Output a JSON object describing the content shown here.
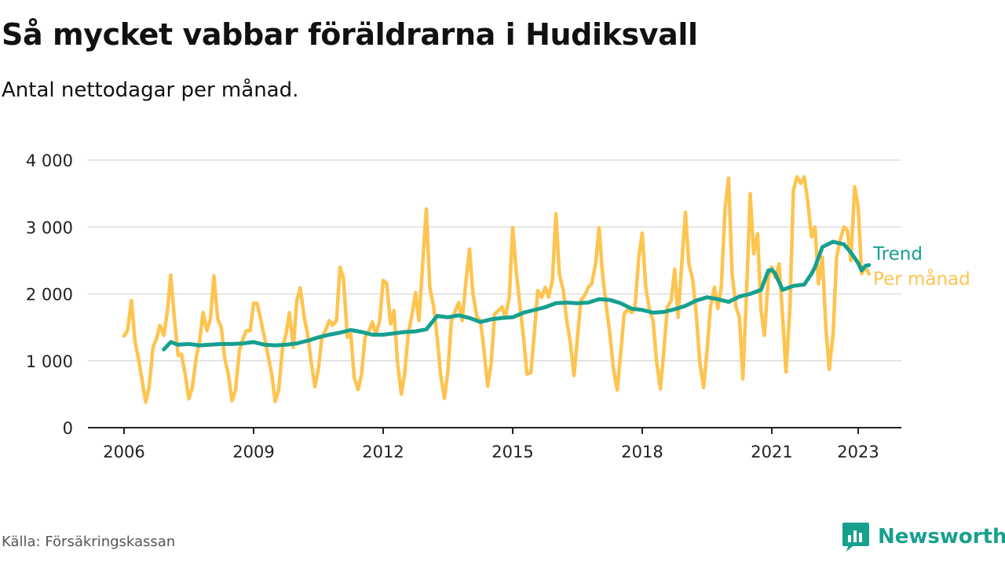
{
  "title": "Så mycket vabbar föräldrarna i Hudiksvall",
  "subtitle": "Antal nettodagar per månad.",
  "source": "Källa: Försäkringskassan",
  "brand": {
    "name": "Newsworthy",
    "color": "#18a08e"
  },
  "colors": {
    "monthly": "#fec44f",
    "trend": "#17a08f",
    "grid": "#dddddd",
    "axis": "#222222"
  },
  "chart_data": {
    "type": "line",
    "title": "Så mycket vabbar föräldrarna i Hudiksvall",
    "subtitle": "Antal nettodagar per månad.",
    "xlim": [
      2006,
      2024.5
    ],
    "ylim": [
      0,
      4000
    ],
    "x_ticks": [
      2006,
      2009,
      2012,
      2015,
      2018,
      2021,
      2023
    ],
    "x_tick_labels": [
      "2006",
      "2009",
      "2012",
      "2015",
      "2018",
      "2021",
      "2023"
    ],
    "y_ticks": [
      0,
      1000,
      2000,
      3000,
      4000
    ],
    "y_tick_labels": [
      "0",
      "1 000",
      "2 000",
      "3 000",
      "4 000"
    ],
    "grid": true,
    "legend": "direct labels at end of lines (right)",
    "series": [
      {
        "name": "Per månad",
        "color": "#fec44f",
        "x": [
          2006.0,
          2006.08,
          2006.17,
          2006.25,
          2006.33,
          2006.42,
          2006.5,
          2006.58,
          2006.67,
          2006.75,
          2006.83,
          2006.92,
          2007.0,
          2007.08,
          2007.17,
          2007.25,
          2007.33,
          2007.42,
          2007.5,
          2007.58,
          2007.67,
          2007.75,
          2007.83,
          2007.92,
          2008.0,
          2008.08,
          2008.17,
          2008.25,
          2008.33,
          2008.42,
          2008.5,
          2008.58,
          2008.67,
          2008.75,
          2008.83,
          2008.92,
          2009.0,
          2009.08,
          2009.17,
          2009.25,
          2009.33,
          2009.42,
          2009.5,
          2009.58,
          2009.67,
          2009.75,
          2009.83,
          2009.92,
          2010.0,
          2010.08,
          2010.17,
          2010.25,
          2010.33,
          2010.42,
          2010.5,
          2010.58,
          2010.67,
          2010.75,
          2010.83,
          2010.92,
          2011.0,
          2011.08,
          2011.17,
          2011.25,
          2011.33,
          2011.42,
          2011.5,
          2011.58,
          2011.67,
          2011.75,
          2011.83,
          2011.92,
          2012.0,
          2012.08,
          2012.17,
          2012.25,
          2012.33,
          2012.42,
          2012.5,
          2012.58,
          2012.67,
          2012.75,
          2012.83,
          2012.92,
          2013.0,
          2013.08,
          2013.17,
          2013.25,
          2013.33,
          2013.42,
          2013.5,
          2013.58,
          2013.67,
          2013.75,
          2013.83,
          2013.92,
          2014.0,
          2014.08,
          2014.17,
          2014.25,
          2014.33,
          2014.42,
          2014.5,
          2014.58,
          2014.67,
          2014.75,
          2014.83,
          2014.92,
          2015.0,
          2015.08,
          2015.17,
          2015.25,
          2015.33,
          2015.42,
          2015.5,
          2015.58,
          2015.67,
          2015.75,
          2015.83,
          2015.92,
          2016.0,
          2016.08,
          2016.17,
          2016.25,
          2016.33,
          2016.42,
          2016.5,
          2016.58,
          2016.67,
          2016.75,
          2016.83,
          2016.92,
          2017.0,
          2017.08,
          2017.17,
          2017.25,
          2017.33,
          2017.42,
          2017.5,
          2017.58,
          2017.67,
          2017.75,
          2017.83,
          2017.92,
          2018.0,
          2018.08,
          2018.17,
          2018.25,
          2018.33,
          2018.42,
          2018.5,
          2018.58,
          2018.67,
          2018.75,
          2018.83,
          2018.92,
          2019.0,
          2019.08,
          2019.17,
          2019.25,
          2019.33,
          2019.42,
          2019.5,
          2019.58,
          2019.67,
          2019.75,
          2019.83,
          2019.92,
          2020.0,
          2020.08,
          2020.17,
          2020.25,
          2020.33,
          2020.42,
          2020.5,
          2020.58,
          2020.67,
          2020.75,
          2020.83,
          2020.92,
          2021.0,
          2021.08,
          2021.17,
          2021.25,
          2021.33,
          2021.42,
          2021.5,
          2021.58,
          2021.67,
          2021.75,
          2021.83,
          2021.92,
          2022.0,
          2022.08,
          2022.17,
          2022.25,
          2022.33,
          2022.42,
          2022.5,
          2022.58,
          2022.67,
          2022.75,
          2022.83,
          2022.92,
          2023.0,
          2023.08,
          2023.17,
          2023.25
        ],
        "values": [
          1370,
          1450,
          1900,
          1300,
          1050,
          700,
          380,
          600,
          1200,
          1330,
          1530,
          1380,
          1720,
          2280,
          1600,
          1080,
          1100,
          780,
          430,
          600,
          1050,
          1300,
          1720,
          1450,
          1620,
          2270,
          1620,
          1500,
          1050,
          780,
          400,
          560,
          1150,
          1320,
          1450,
          1450,
          1860,
          1860,
          1600,
          1350,
          1100,
          800,
          390,
          560,
          1200,
          1400,
          1720,
          1200,
          1900,
          2090,
          1650,
          1400,
          1000,
          610,
          880,
          1350,
          1460,
          1600,
          1530,
          1600,
          2400,
          2240,
          1350,
          1400,
          750,
          570,
          800,
          1350,
          1450,
          1580,
          1400,
          1600,
          2200,
          2160,
          1550,
          1750,
          1000,
          500,
          820,
          1400,
          1700,
          2020,
          1600,
          2500,
          3270,
          2100,
          1800,
          1350,
          800,
          440,
          850,
          1600,
          1750,
          1870,
          1600,
          2200,
          2670,
          2000,
          1650,
          1600,
          1200,
          620,
          950,
          1700,
          1750,
          1810,
          1650,
          1950,
          2990,
          2350,
          1800,
          1350,
          800,
          820,
          1400,
          2050,
          1950,
          2100,
          1950,
          2200,
          3200,
          2300,
          2050,
          1600,
          1300,
          780,
          1350,
          1900,
          1980,
          2100,
          2150,
          2450,
          2990,
          2300,
          1800,
          1400,
          900,
          560,
          1100,
          1700,
          1770,
          1720,
          1780,
          2550,
          2910,
          2100,
          1750,
          1600,
          1000,
          580,
          1150,
          1800,
          1900,
          2370,
          1650,
          2500,
          3220,
          2450,
          2200,
          1700,
          1000,
          600,
          1150,
          1800,
          2100,
          1780,
          2100,
          3300,
          3730,
          2300,
          1800,
          1650,
          730,
          2100,
          3500,
          2600,
          2900,
          1750,
          1380,
          2250,
          2400,
          2250,
          2450,
          1650,
          830,
          1800,
          3550,
          3750,
          3650,
          3750,
          3400,
          2850,
          3000,
          2150,
          2550,
          1500,
          870,
          1400,
          2550,
          2800,
          3000,
          2950,
          2500,
          3600,
          3300,
          2300,
          2400,
          2300
        ]
      },
      {
        "name": "Trend",
        "color": "#17a08f",
        "x": [
          2006.92,
          2007.08,
          2007.25,
          2007.5,
          2007.75,
          2008.0,
          2008.25,
          2008.5,
          2008.75,
          2009.0,
          2009.25,
          2009.5,
          2009.75,
          2010.0,
          2010.25,
          2010.5,
          2010.75,
          2011.0,
          2011.25,
          2011.5,
          2011.75,
          2012.0,
          2012.25,
          2012.5,
          2012.75,
          2013.0,
          2013.25,
          2013.5,
          2013.75,
          2014.0,
          2014.25,
          2014.5,
          2014.75,
          2015.0,
          2015.25,
          2015.5,
          2015.75,
          2016.0,
          2016.25,
          2016.5,
          2016.75,
          2017.0,
          2017.25,
          2017.5,
          2017.75,
          2018.0,
          2018.25,
          2018.5,
          2018.75,
          2019.0,
          2019.25,
          2019.5,
          2019.75,
          2020.0,
          2020.25,
          2020.5,
          2020.75,
          2020.92,
          2021.0,
          2021.08,
          2021.25,
          2021.5,
          2021.75,
          2021.92,
          2022.0,
          2022.17,
          2022.42,
          2022.67,
          2022.83,
          2023.0,
          2023.08,
          2023.17,
          2023.25
        ],
        "values": [
          1170,
          1280,
          1240,
          1250,
          1230,
          1240,
          1250,
          1250,
          1260,
          1280,
          1240,
          1230,
          1240,
          1260,
          1300,
          1350,
          1390,
          1420,
          1460,
          1430,
          1390,
          1390,
          1410,
          1430,
          1440,
          1470,
          1670,
          1650,
          1680,
          1640,
          1580,
          1620,
          1640,
          1650,
          1720,
          1760,
          1800,
          1860,
          1870,
          1860,
          1870,
          1920,
          1910,
          1860,
          1780,
          1760,
          1720,
          1730,
          1770,
          1820,
          1900,
          1950,
          1920,
          1880,
          1960,
          2000,
          2060,
          2350,
          2360,
          2300,
          2060,
          2120,
          2140,
          2300,
          2400,
          2700,
          2780,
          2740,
          2620,
          2460,
          2350,
          2420,
          2430
        ]
      }
    ]
  }
}
